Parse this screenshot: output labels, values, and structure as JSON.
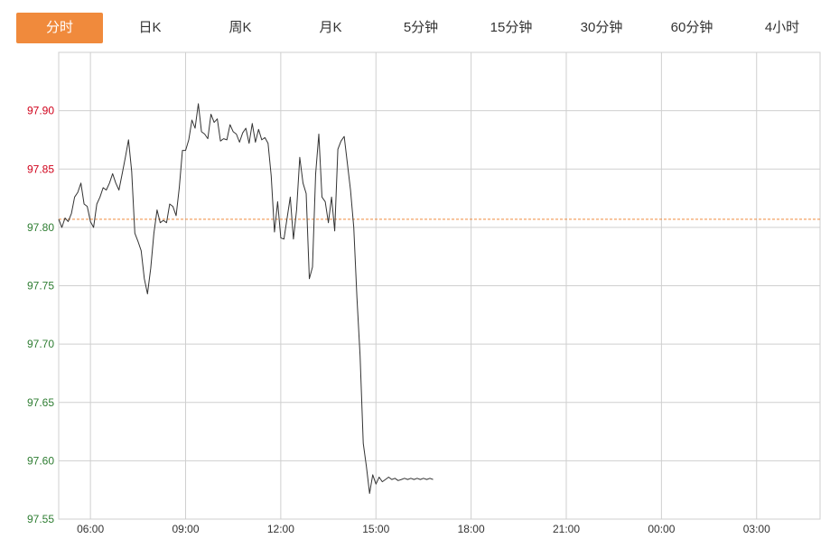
{
  "tabs": [
    {
      "label": "分时",
      "active": true
    },
    {
      "label": "日K",
      "active": false
    },
    {
      "label": "周K",
      "active": false
    },
    {
      "label": "月K",
      "active": false
    },
    {
      "label": "5分钟",
      "active": false
    },
    {
      "label": "15分钟",
      "active": false
    },
    {
      "label": "30分钟",
      "active": false
    },
    {
      "label": "60分钟",
      "active": false
    },
    {
      "label": "4小时",
      "active": false
    }
  ],
  "colors": {
    "accent": "#f08a3c",
    "up": "#d0021b",
    "down": "#2e7d32",
    "line": "#333333",
    "reference": "#f08a3c",
    "grid": "#cfcfcf"
  },
  "chart_data": {
    "type": "line",
    "title": "",
    "xlabel": "",
    "ylabel": "",
    "ylim": [
      97.55,
      97.95
    ],
    "reference_price": 97.807,
    "yticks": [
      "97.90",
      "97.85",
      "97.80",
      "97.75",
      "97.70",
      "97.65",
      "97.60",
      "97.55"
    ],
    "xticks": [
      "06:00",
      "09:00",
      "12:00",
      "15:00",
      "18:00",
      "21:00",
      "00:00",
      "03:00"
    ],
    "xlim_hours": [
      5,
      29
    ],
    "grid": true,
    "series": [
      {
        "name": "",
        "x": [
          5.0,
          5.1,
          5.2,
          5.3,
          5.4,
          5.5,
          5.6,
          5.7,
          5.8,
          5.9,
          6.0,
          6.1,
          6.2,
          6.3,
          6.4,
          6.5,
          6.6,
          6.7,
          6.8,
          6.9,
          7.0,
          7.1,
          7.2,
          7.3,
          7.4,
          7.5,
          7.6,
          7.7,
          7.8,
          7.9,
          8.0,
          8.1,
          8.2,
          8.3,
          8.4,
          8.5,
          8.6,
          8.7,
          8.8,
          8.9,
          9.0,
          9.1,
          9.2,
          9.3,
          9.4,
          9.5,
          9.6,
          9.7,
          9.8,
          9.9,
          10.0,
          10.1,
          10.2,
          10.3,
          10.4,
          10.5,
          10.6,
          10.7,
          10.8,
          10.9,
          11.0,
          11.1,
          11.2,
          11.3,
          11.4,
          11.5,
          11.6,
          11.7,
          11.8,
          11.9,
          12.0,
          12.1,
          12.2,
          12.3,
          12.4,
          12.5,
          12.6,
          12.7,
          12.8,
          12.9,
          13.0,
          13.1,
          13.2,
          13.3,
          13.4,
          13.5,
          13.6,
          13.7,
          13.8,
          13.9,
          14.0,
          14.1,
          14.2,
          14.3,
          14.4,
          14.5,
          14.6,
          14.7,
          14.8,
          14.9,
          15.0,
          15.1,
          15.2,
          15.3,
          15.4,
          15.5,
          15.6,
          15.7,
          15.8,
          15.9,
          16.0,
          16.1,
          16.2,
          16.3,
          16.4,
          16.5,
          16.6,
          16.7,
          16.8
        ],
        "y": [
          97.807,
          97.8,
          97.808,
          97.805,
          97.812,
          97.826,
          97.83,
          97.838,
          97.82,
          97.818,
          97.805,
          97.8,
          97.82,
          97.826,
          97.834,
          97.832,
          97.838,
          97.846,
          97.838,
          97.832,
          97.846,
          97.86,
          97.875,
          97.848,
          97.795,
          97.788,
          97.78,
          97.756,
          97.743,
          97.765,
          97.795,
          97.815,
          97.804,
          97.806,
          97.804,
          97.82,
          97.818,
          97.81,
          97.834,
          97.866,
          97.866,
          97.875,
          97.892,
          97.885,
          97.906,
          97.882,
          97.88,
          97.876,
          97.897,
          97.89,
          97.893,
          97.874,
          97.876,
          97.875,
          97.888,
          97.882,
          97.88,
          97.873,
          97.881,
          97.885,
          97.872,
          97.889,
          97.873,
          97.884,
          97.875,
          97.877,
          97.872,
          97.844,
          97.796,
          97.822,
          97.791,
          97.79,
          97.808,
          97.826,
          97.79,
          97.815,
          97.86,
          97.838,
          97.829,
          97.756,
          97.766,
          97.846,
          97.88,
          97.826,
          97.822,
          97.804,
          97.826,
          97.797,
          97.867,
          97.874,
          97.878,
          97.855,
          97.832,
          97.8,
          97.74,
          97.69,
          97.615,
          97.595,
          97.572,
          97.588,
          97.58,
          97.586,
          97.582,
          97.584,
          97.586,
          97.584,
          97.585,
          97.583,
          97.584,
          97.585,
          97.584,
          97.585,
          97.584,
          97.585,
          97.584,
          97.585,
          97.584,
          97.585,
          97.584
        ]
      }
    ]
  }
}
